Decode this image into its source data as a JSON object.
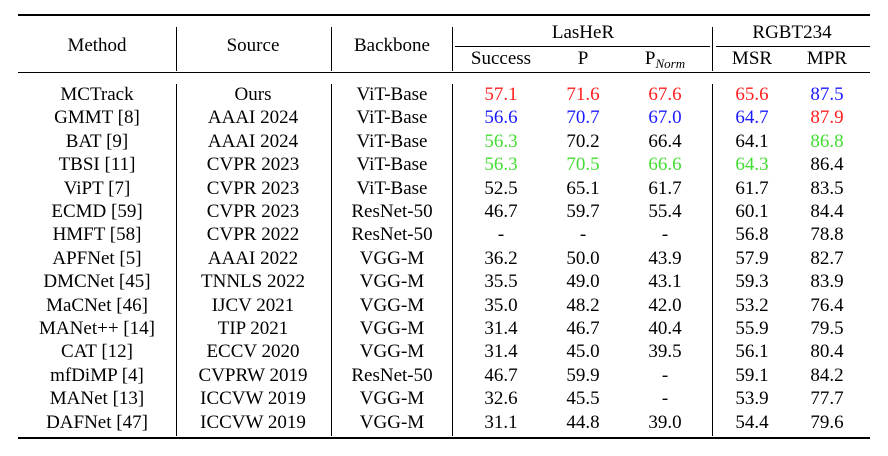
{
  "table": {
    "headers": {
      "method": "Method",
      "source": "Source",
      "backbone": "Backbone",
      "lasher": "LasHeR",
      "rgbt234": "RGBT234",
      "success": "Success",
      "p": "P",
      "pnorm_base": "P",
      "pnorm_sub": "Norm",
      "msr": "MSR",
      "mpr": "MPR"
    },
    "highlight_colors": {
      "red": "#ff2020",
      "blue": "#1a1aff",
      "green": "#44dd33"
    },
    "rows": [
      {
        "method": "MCTrack",
        "source": "Ours",
        "backbone": "ViT-Base",
        "success": "57.1",
        "p": "71.6",
        "pnorm": "67.6",
        "msr": "65.6",
        "mpr": "87.5",
        "colors": {
          "success": "red",
          "p": "red",
          "pnorm": "red",
          "msr": "red",
          "mpr": "blue"
        }
      },
      {
        "method": "GMMT [8]",
        "source": "AAAI 2024",
        "backbone": "ViT-Base",
        "success": "56.6",
        "p": "70.7",
        "pnorm": "67.0",
        "msr": "64.7",
        "mpr": "87.9",
        "colors": {
          "success": "blue",
          "p": "blue",
          "pnorm": "blue",
          "msr": "blue",
          "mpr": "red"
        }
      },
      {
        "method": "BAT [9]",
        "source": "AAAI 2024",
        "backbone": "ViT-Base",
        "success": "56.3",
        "p": "70.2",
        "pnorm": "66.4",
        "msr": "64.1",
        "mpr": "86.8",
        "colors": {
          "success": "green",
          "mpr": "green"
        }
      },
      {
        "method": "TBSI [11]",
        "source": "CVPR 2023",
        "backbone": "ViT-Base",
        "success": "56.3",
        "p": "70.5",
        "pnorm": "66.6",
        "msr": "64.3",
        "mpr": "86.4",
        "colors": {
          "success": "green",
          "p": "green",
          "pnorm": "green",
          "msr": "green"
        }
      },
      {
        "method": "ViPT [7]",
        "source": "CVPR 2023",
        "backbone": "ViT-Base",
        "success": "52.5",
        "p": "65.1",
        "pnorm": "61.7",
        "msr": "61.7",
        "mpr": "83.5",
        "colors": {}
      },
      {
        "method": "ECMD [59]",
        "source": "CVPR 2023",
        "backbone": "ResNet-50",
        "success": "46.7",
        "p": "59.7",
        "pnorm": "55.4",
        "msr": "60.1",
        "mpr": "84.4",
        "colors": {}
      },
      {
        "method": "HMFT [58]",
        "source": "CVPR 2022",
        "backbone": "ResNet-50",
        "success": "-",
        "p": "-",
        "pnorm": "-",
        "msr": "56.8",
        "mpr": "78.8",
        "colors": {}
      },
      {
        "method": "APFNet [5]",
        "source": "AAAI 2022",
        "backbone": "VGG-M",
        "success": "36.2",
        "p": "50.0",
        "pnorm": "43.9",
        "msr": "57.9",
        "mpr": "82.7",
        "colors": {}
      },
      {
        "method": "DMCNet [45]",
        "source": "TNNLS 2022",
        "backbone": "VGG-M",
        "success": "35.5",
        "p": "49.0",
        "pnorm": "43.1",
        "msr": "59.3",
        "mpr": "83.9",
        "colors": {}
      },
      {
        "method": "MaCNet [46]",
        "source": "IJCV 2021",
        "backbone": "VGG-M",
        "success": "35.0",
        "p": "48.2",
        "pnorm": "42.0",
        "msr": "53.2",
        "mpr": "76.4",
        "colors": {}
      },
      {
        "method": "MANet++ [14]",
        "source": "TIP 2021",
        "backbone": "VGG-M",
        "success": "31.4",
        "p": "46.7",
        "pnorm": "40.4",
        "msr": "55.9",
        "mpr": "79.5",
        "colors": {}
      },
      {
        "method": "CAT [12]",
        "source": "ECCV 2020",
        "backbone": "VGG-M",
        "success": "31.4",
        "p": "45.0",
        "pnorm": "39.5",
        "msr": "56.1",
        "mpr": "80.4",
        "colors": {}
      },
      {
        "method": "mfDiMP [4]",
        "source": "CVPRW 2019",
        "backbone": "ResNet-50",
        "success": "46.7",
        "p": "59.9",
        "pnorm": "-",
        "msr": "59.1",
        "mpr": "84.2",
        "colors": {}
      },
      {
        "method": "MANet [13]",
        "source": "ICCVW 2019",
        "backbone": "VGG-M",
        "success": "32.6",
        "p": "45.5",
        "pnorm": "-",
        "msr": "53.9",
        "mpr": "77.7",
        "colors": {}
      },
      {
        "method": "DAFNet [47]",
        "source": "ICCVW 2019",
        "backbone": "VGG-M",
        "success": "31.1",
        "p": "44.8",
        "pnorm": "39.0",
        "msr": "54.4",
        "mpr": "79.6",
        "colors": {}
      }
    ]
  }
}
